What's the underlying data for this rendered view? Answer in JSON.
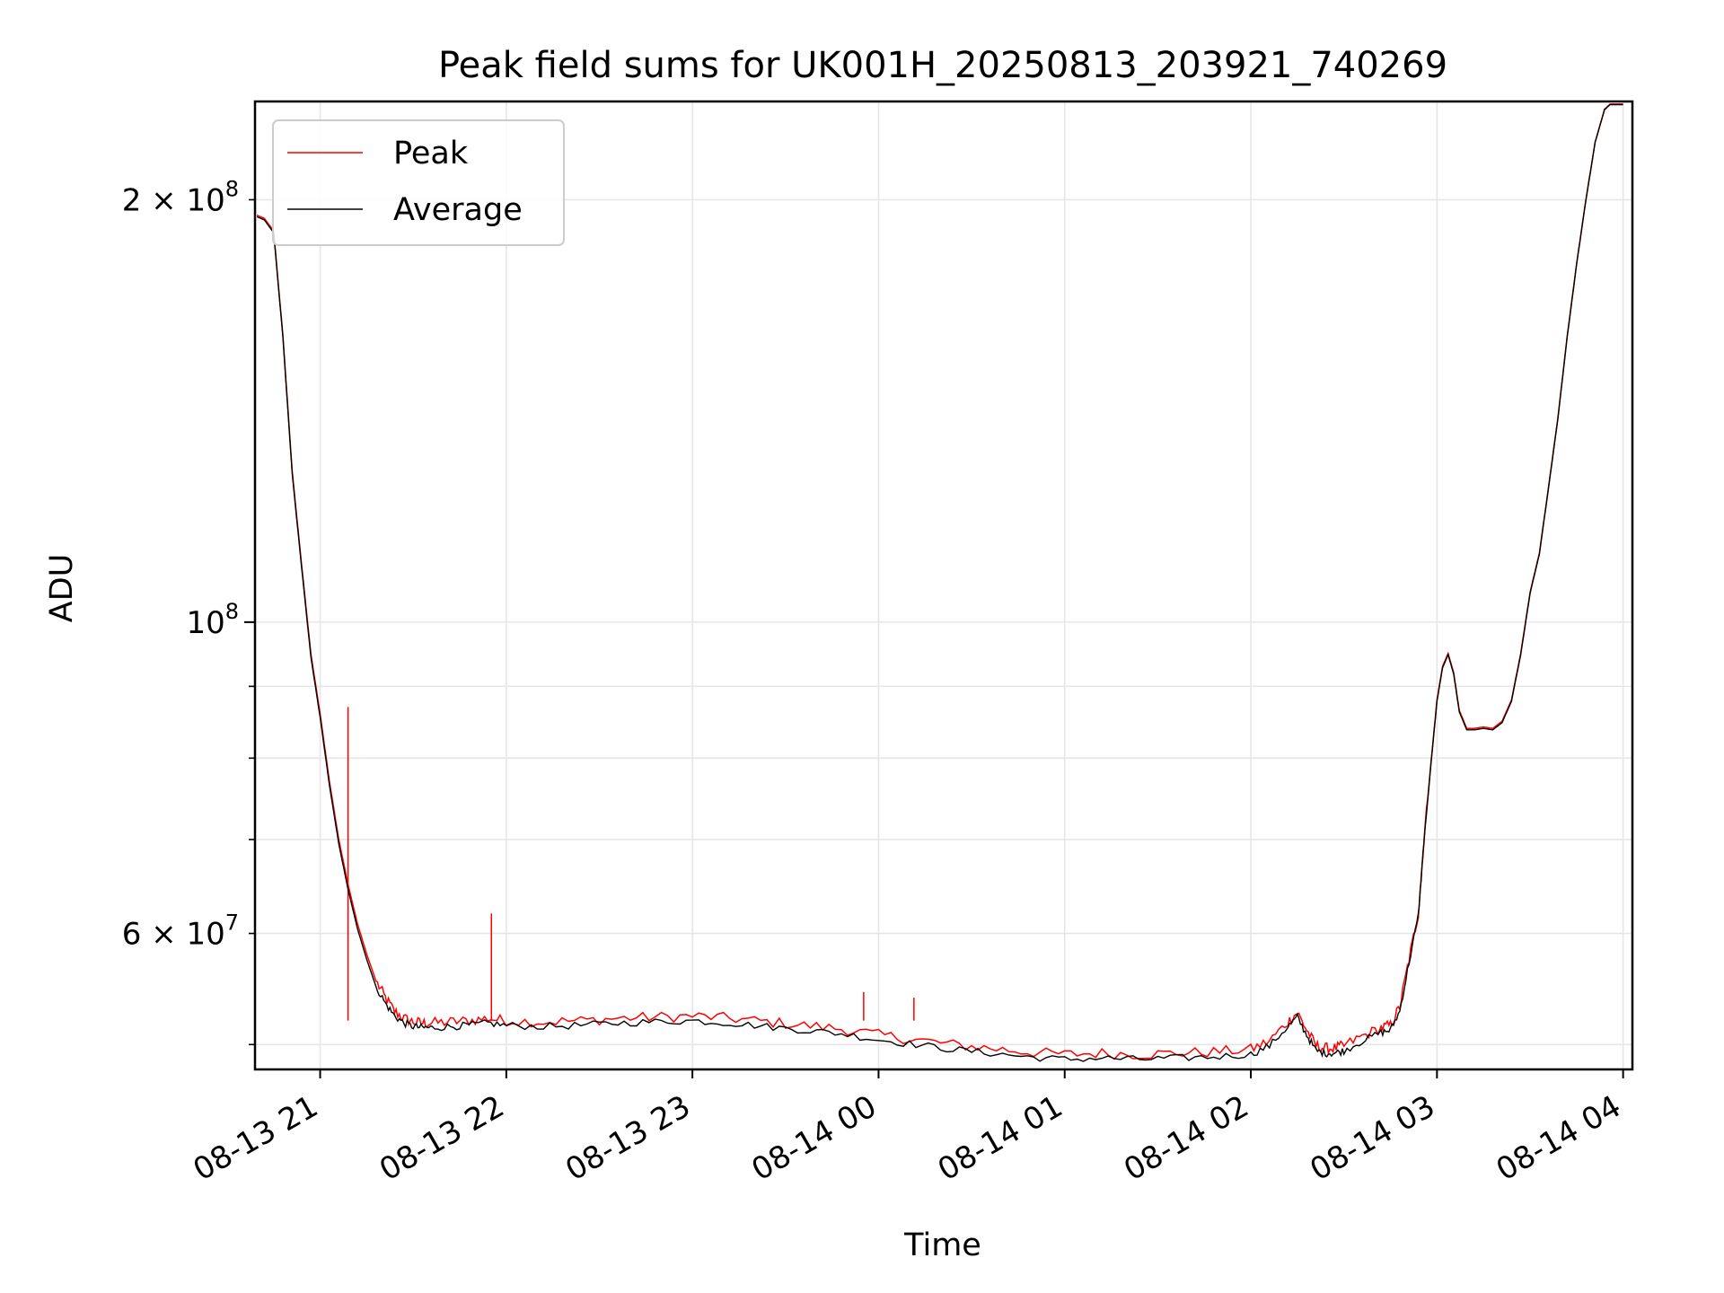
{
  "chart_data": {
    "type": "line",
    "title": "Peak field sums for UK001H_20250813_203921_740269",
    "xlabel": "Time",
    "ylabel": "ADU",
    "x_ticks": [
      "08-13 21",
      "08-13 22",
      "08-13 23",
      "08-14 00",
      "08-14 01",
      "08-14 02",
      "08-14 03",
      "08-14 04"
    ],
    "x_tick_hours": [
      21,
      22,
      23,
      24,
      25,
      26,
      27,
      28
    ],
    "x_range_hours": [
      20.65,
      28.05
    ],
    "y_scale": "log",
    "ylim": [
      48000000,
      235000000
    ],
    "y_major_ticks": [
      {
        "value": 100000000,
        "base": "10",
        "exp": "8",
        "mult": ""
      }
    ],
    "y_minor_labeled_ticks": [
      {
        "value": 200000000,
        "mult": "2",
        "base": "10",
        "exp": "8"
      },
      {
        "value": 60000000,
        "mult": "6",
        "base": "10",
        "exp": "7"
      }
    ],
    "y_minor_ticks": [
      50000000,
      60000000,
      70000000,
      80000000,
      90000000,
      200000000
    ],
    "grid": true,
    "legend_position": "upper-left",
    "colors": {
      "peak": "#ff0000",
      "average": "#000000"
    },
    "series": [
      {
        "name": "Peak",
        "color": "#ff0000",
        "x_hours": [
          20.66,
          20.7,
          20.75,
          20.8,
          20.85,
          20.9,
          20.95,
          21.0,
          21.05,
          21.1,
          21.15,
          21.2,
          21.25,
          21.3,
          21.35,
          21.4,
          21.45,
          21.5,
          21.55,
          21.6,
          21.7,
          21.8,
          21.9,
          22.0,
          22.2,
          22.4,
          22.6,
          22.8,
          23.0,
          23.2,
          23.4,
          23.6,
          23.8,
          24.0,
          24.2,
          24.4,
          24.6,
          24.8,
          25.0,
          25.2,
          25.4,
          25.6,
          25.8,
          26.0,
          26.1,
          26.2,
          26.25,
          26.3,
          26.35,
          26.4,
          26.45,
          26.5,
          26.6,
          26.7,
          26.75,
          26.8,
          26.85,
          26.9,
          26.93,
          26.97,
          27.0,
          27.03,
          27.06,
          27.09,
          27.12,
          27.16,
          27.2,
          27.25,
          27.3,
          27.35,
          27.4,
          27.45,
          27.5,
          27.55,
          27.6,
          27.65,
          27.7,
          27.75,
          27.8,
          27.85,
          27.9,
          27.93,
          27.96,
          28.0
        ],
        "values": [
          195000000,
          194000000,
          190000000,
          160000000,
          128000000,
          110000000,
          95000000,
          86000000,
          77000000,
          70000000,
          65000000,
          61000000,
          58000000,
          55500000,
          54000000,
          52800000,
          52200000,
          51900000,
          51800000,
          51800000,
          51900000,
          52000000,
          52200000,
          52000000,
          51900000,
          52000000,
          52200000,
          52300000,
          52400000,
          52200000,
          51900000,
          51600000,
          51300000,
          50800000,
          50400000,
          50000000,
          49700000,
          49400000,
          49200000,
          49300000,
          49200000,
          49300000,
          49400000,
          49600000,
          50300000,
          51900000,
          52700000,
          51200000,
          49900000,
          49700000,
          49700000,
          49900000,
          50700000,
          51400000,
          51600000,
          53200000,
          57500000,
          62000000,
          70000000,
          80000000,
          88000000,
          93000000,
          95000000,
          92000000,
          86500000,
          84000000,
          84000000,
          84200000,
          84000000,
          85000000,
          88000000,
          95000000,
          105000000,
          112000000,
          125000000,
          140000000,
          160000000,
          180000000,
          200000000,
          220000000,
          232000000,
          234000000,
          234000000,
          234000000
        ],
        "spikes": [
          {
            "x_hours": 21.15,
            "value": 87000000
          },
          {
            "x_hours": 21.92,
            "value": 62000000
          },
          {
            "x_hours": 23.92,
            "value": 54500000
          },
          {
            "x_hours": 24.19,
            "value": 54000000
          }
        ]
      },
      {
        "name": "Average",
        "color": "#000000",
        "x_hours": [
          20.66,
          20.7,
          20.75,
          20.8,
          20.85,
          20.9,
          20.95,
          21.0,
          21.05,
          21.1,
          21.15,
          21.2,
          21.25,
          21.3,
          21.35,
          21.4,
          21.45,
          21.5,
          21.55,
          21.6,
          21.7,
          21.8,
          21.9,
          22.0,
          22.2,
          22.4,
          22.6,
          22.8,
          23.0,
          23.2,
          23.4,
          23.6,
          23.8,
          24.0,
          24.2,
          24.4,
          24.6,
          24.8,
          25.0,
          25.2,
          25.4,
          25.6,
          25.8,
          26.0,
          26.1,
          26.2,
          26.25,
          26.3,
          26.35,
          26.4,
          26.45,
          26.5,
          26.6,
          26.7,
          26.75,
          26.8,
          26.85,
          26.9,
          26.93,
          26.97,
          27.0,
          27.03,
          27.06,
          27.09,
          27.12,
          27.16,
          27.2,
          27.25,
          27.3,
          27.35,
          27.4,
          27.45,
          27.5,
          27.55,
          27.6,
          27.65,
          27.7,
          27.75,
          27.8,
          27.85,
          27.9,
          27.93,
          27.96,
          28.0
        ],
        "values": [
          194500000,
          193500000,
          189500000,
          159500000,
          127500000,
          109500000,
          94500000,
          85500000,
          76500000,
          69500000,
          64500000,
          60500000,
          57500000,
          55000000,
          53500000,
          52400000,
          51800000,
          51500000,
          51400000,
          51400000,
          51500000,
          51600000,
          51800000,
          51600000,
          51500000,
          51600000,
          51800000,
          51900000,
          52000000,
          51800000,
          51500000,
          51200000,
          50900000,
          50400000,
          50000000,
          49600000,
          49300000,
          49000000,
          48800000,
          48900000,
          48800000,
          48900000,
          49000000,
          49200000,
          49900000,
          51500000,
          52300000,
          50800000,
          49500000,
          49300000,
          49300000,
          49500000,
          50300000,
          51000000,
          51200000,
          52800000,
          57200000,
          61800000,
          69800000,
          79800000,
          87800000,
          92800000,
          94800000,
          91800000,
          86300000,
          83800000,
          83800000,
          84000000,
          83800000,
          84800000,
          87800000,
          94800000,
          104800000,
          111800000,
          124800000,
          139800000,
          159800000,
          179800000,
          199800000,
          219800000,
          231800000,
          233800000,
          233800000,
          233800000
        ]
      }
    ]
  }
}
